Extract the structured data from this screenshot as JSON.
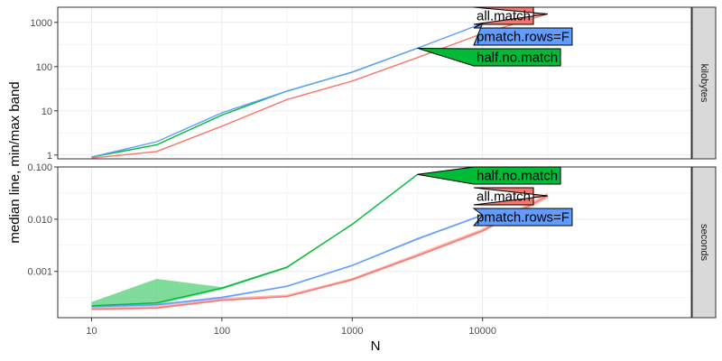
{
  "chart_data": {
    "type": "line",
    "xlabel": "N",
    "ylabel": "median line, min/max band",
    "x_scale": "log",
    "x_ticks": [
      10,
      100,
      1000,
      10000
    ],
    "x_tick_labels": [
      "10",
      "100",
      "1000",
      "10000"
    ],
    "grid": true,
    "legend": "direct labels at line ends",
    "colors": {
      "all.match": "#F8766D",
      "half.no.match": "#00BA38",
      "pmatch.rows=F": "#619CFF"
    },
    "panels": [
      {
        "strip": "kilobytes",
        "y_scale": "log",
        "y_ticks": [
          1,
          10,
          100,
          1000
        ],
        "y_tick_labels": [
          "1",
          "10",
          "100",
          "1000"
        ],
        "series": [
          {
            "name": "all.match",
            "x": [
              10,
              31.6,
              100,
              316,
              1000,
              3162,
              10000,
              31623
            ],
            "median": [
              0.85,
              1.2,
              4.5,
              18,
              47,
              160,
              560,
              1550
            ]
          },
          {
            "name": "half.no.match",
            "x": [
              10,
              31.6,
              100,
              316,
              1000,
              3162
            ],
            "median": [
              0.9,
              1.7,
              8,
              28,
              75,
              260
            ]
          },
          {
            "name": "pmatch.rows=F",
            "x": [
              10,
              31.6,
              100,
              316,
              1000,
              3162,
              10000
            ],
            "median": [
              0.9,
              2,
              9,
              28,
              75,
              260,
              950
            ]
          }
        ]
      },
      {
        "strip": "seconds",
        "y_scale": "log",
        "y_ticks": [
          0.001,
          0.01,
          0.1
        ],
        "y_tick_labels": [
          "0.001",
          "0.010",
          "0.100"
        ],
        "series": [
          {
            "name": "all.match",
            "x": [
              10,
              31.6,
              100,
              316,
              1000,
              3162,
              10000,
              31623
            ],
            "median": [
              0.00019,
              0.0002,
              0.00028,
              0.00033,
              0.0007,
              0.002,
              0.006,
              0.028
            ],
            "min": [
              0.00018,
              0.00019,
              0.00027,
              0.00032,
              0.00066,
              0.0019,
              0.0056,
              0.025
            ],
            "max": [
              0.0002,
              0.00022,
              0.00031,
              0.00036,
              0.00075,
              0.0022,
              0.0066,
              0.032
            ]
          },
          {
            "name": "half.no.match",
            "x": [
              10,
              31.6,
              100,
              316,
              1000,
              3162
            ],
            "median": [
              0.00022,
              0.00025,
              0.00048,
              0.0012,
              0.008,
              0.072
            ],
            "min": [
              0.00021,
              0.00023,
              0.00045,
              0.00115,
              0.0078,
              0.07
            ],
            "max": [
              0.00026,
              0.00072,
              0.0005,
              0.00125,
              0.0082,
              0.074
            ]
          },
          {
            "name": "pmatch.rows=F",
            "x": [
              10,
              31.6,
              100,
              316,
              1000,
              3162,
              10000
            ],
            "median": [
              0.00021,
              0.00023,
              0.00032,
              0.00052,
              0.0013,
              0.0042,
              0.012
            ],
            "min": [
              0.0002,
              0.00022,
              0.0003,
              0.0005,
              0.00125,
              0.004,
              0.0115
            ],
            "max": [
              0.00022,
              0.00024,
              0.00033,
              0.00054,
              0.00135,
              0.0044,
              0.0125
            ]
          }
        ]
      }
    ]
  }
}
